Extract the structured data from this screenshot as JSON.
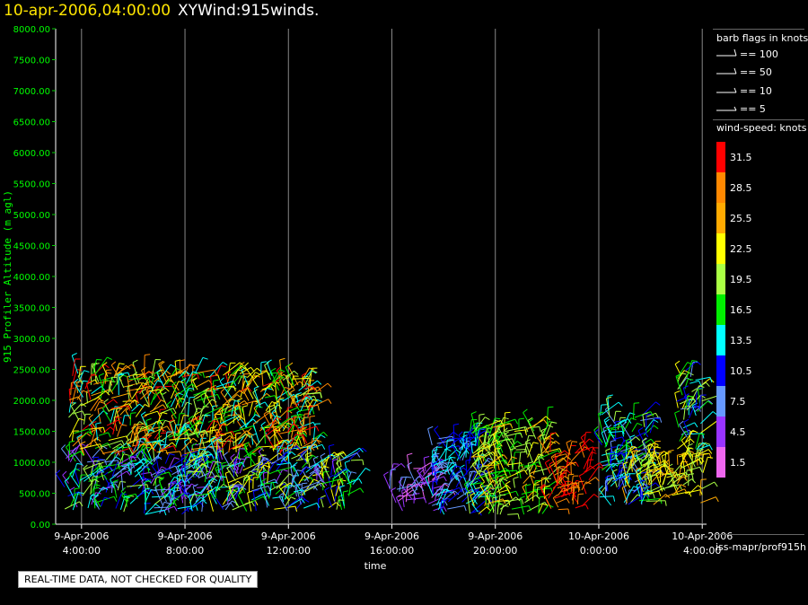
{
  "header": {
    "timestamp": "10-apr-2006,04:00:00",
    "product": "XYWind:915winds."
  },
  "legend": {
    "barb_title": "barb flags in knots",
    "barbs": [
      "== 100",
      "== 50",
      "== 10",
      "== 5"
    ],
    "color_title": "wind-speed: knots",
    "color_labels": [
      "31.5",
      "28.5",
      "25.5",
      "22.5",
      "19.5",
      "16.5",
      "13.5",
      "10.5",
      "7.5",
      "4.5",
      "1.5"
    ],
    "colors": [
      "#ff0000",
      "#ff8800",
      "#ffaa00",
      "#ffff00",
      "#aaff44",
      "#00ee00",
      "#00ffff",
      "#0000ff",
      "#6699ff",
      "#9933ff",
      "#ee66ee"
    ]
  },
  "footer": {
    "qc_note": "REAL-TIME DATA, NOT CHECKED FOR QUALITY",
    "path": "iss-mapr/prof915h"
  },
  "chart_data": {
    "type": "scatter",
    "title": "10-apr-2006,04:00:00  XYWind:915winds.",
    "xlabel": "time",
    "ylabel": "915 Profiler Altitude (m agl)",
    "ylim": [
      0,
      8000
    ],
    "y_ticks": [
      "0.00",
      "500.00",
      "1000.00",
      "1500.00",
      "2000.00",
      "2500.00",
      "3000.00",
      "3500.00",
      "4000.00",
      "4500.00",
      "5000.00",
      "5500.00",
      "6000.00",
      "6500.00",
      "7000.00",
      "7500.00",
      "8000.00"
    ],
    "x_ticks": [
      {
        "date": "9-Apr-2006",
        "time": "4:00:00"
      },
      {
        "date": "9-Apr-2006",
        "time": "8:00:00"
      },
      {
        "date": "9-Apr-2006",
        "time": "12:00:00"
      },
      {
        "date": "9-Apr-2006",
        "time": "16:00:00"
      },
      {
        "date": "9-Apr-2006",
        "time": "20:00:00"
      },
      {
        "date": "10-Apr-2006",
        "time": "0:00:00"
      },
      {
        "date": "10-Apr-2006",
        "time": "4:00:00"
      }
    ],
    "xlim": [
      "9-Apr-2006 3:00:00",
      "10-Apr-2006 4:10:00"
    ],
    "grid": "vertical",
    "wind_clusters": [
      {
        "t_start": "9-Apr-2006 3:20",
        "t_end": "9-Apr-2006 8:30",
        "alt_min": 150,
        "alt_max": 1100,
        "speed_min": 4,
        "speed_max": 20
      },
      {
        "t_start": "9-Apr-2006 3:30",
        "t_end": "9-Apr-2006 13:00",
        "alt_min": 1100,
        "alt_max": 2450,
        "speed_min": 12,
        "speed_max": 32
      },
      {
        "t_start": "9-Apr-2006 8:00",
        "t_end": "9-Apr-2006 14:30",
        "alt_min": 200,
        "alt_max": 1100,
        "speed_min": 5,
        "speed_max": 24
      },
      {
        "t_start": "9-Apr-2006 15:50",
        "t_end": "9-Apr-2006 17:40",
        "alt_min": 200,
        "alt_max": 900,
        "speed_min": 2,
        "speed_max": 8
      },
      {
        "t_start": "9-Apr-2006 17:30",
        "t_end": "9-Apr-2006 19:30",
        "alt_min": 150,
        "alt_max": 1400,
        "speed_min": 7,
        "speed_max": 15
      },
      {
        "t_start": "9-Apr-2006 19:00",
        "t_end": "9-Apr-2006 22:00",
        "alt_min": 150,
        "alt_max": 1600,
        "speed_min": 15,
        "speed_max": 25
      },
      {
        "t_start": "9-Apr-2006 22:00",
        "t_end": "9-Apr-2006 23:40",
        "alt_min": 200,
        "alt_max": 1200,
        "speed_min": 26,
        "speed_max": 34
      },
      {
        "t_start": "10-Apr-2006 0:00",
        "t_end": "10-Apr-2006 2:00",
        "alt_min": 300,
        "alt_max": 1800,
        "speed_min": 6,
        "speed_max": 20
      },
      {
        "t_start": "10-Apr-2006 1:00",
        "t_end": "10-Apr-2006 4:10",
        "alt_min": 300,
        "alt_max": 1100,
        "speed_min": 18,
        "speed_max": 26
      },
      {
        "t_start": "10-Apr-2006 3:00",
        "t_end": "10-Apr-2006 4:10",
        "alt_min": 1200,
        "alt_max": 2500,
        "speed_min": 8,
        "speed_max": 24
      }
    ]
  }
}
